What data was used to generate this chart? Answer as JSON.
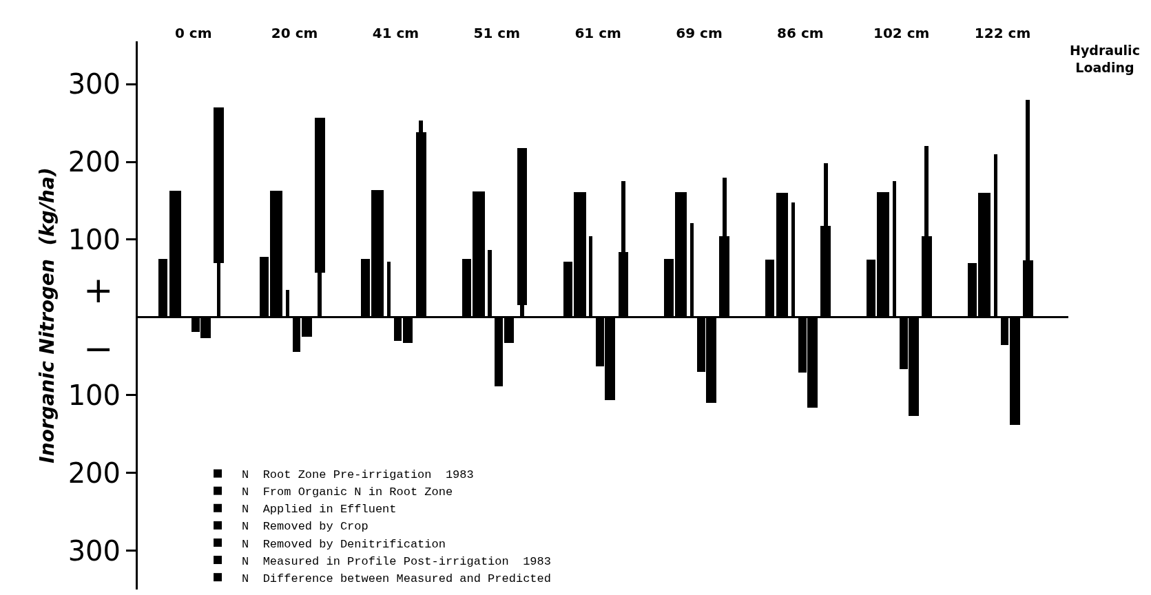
{
  "chart_data": {
    "type": "bar",
    "xlabel": "Hydraulic\nLoading",
    "ylabel": "Inorganic Nitrogen  (kg/ha)",
    "categories": [
      "0 cm",
      "20 cm",
      "41 cm",
      "51 cm",
      "61 cm",
      "69 cm",
      "86 cm",
      "102 cm",
      "122 cm"
    ],
    "series": [
      {
        "name": "N  Root Zone Pre-irrigation  1983",
        "color": "#000000",
        "values": [
          75,
          78,
          75,
          75,
          72,
          75,
          74,
          74,
          70
        ]
      },
      {
        "name": "N  From Organic N in Root Zone",
        "color": "#000000",
        "values": [
          163,
          163,
          164,
          162,
          161,
          161,
          160,
          161,
          160
        ]
      },
      {
        "name": "N  Applied in Effluent",
        "color": "#000000",
        "values": [
          0,
          35,
          72,
          87,
          104,
          121,
          148,
          175,
          210
        ]
      },
      {
        "name": "N  Removed by Crop",
        "color": "#000000",
        "values": [
          -19,
          -44,
          -30,
          -89,
          -63,
          -70,
          -71,
          -67,
          -36
        ]
      },
      {
        "name": "N  Removed by Denitrification",
        "color": "#000000",
        "values": [
          -27,
          -25,
          -33,
          -33,
          -106,
          -110,
          -116,
          -127,
          -138
        ]
      },
      {
        "name": "N  Measured in Profile Post-irrigation  1983",
        "color": "#000000",
        "base": [
          70,
          57,
          0,
          16,
          0,
          0,
          0,
          0,
          0
        ],
        "values": [
          200,
          200,
          238,
          202,
          84,
          104,
          118,
          104,
          73
        ]
      },
      {
        "name": "N  Difference between Measured and Predicted",
        "color": "#000000",
        "base": [
          0,
          0,
          238,
          0,
          84,
          104,
          118,
          104,
          73
        ],
        "values": [
          70,
          57,
          15,
          16,
          91,
          76,
          80,
          116,
          207
        ]
      }
    ],
    "ylim": [
      -350,
      355
    ],
    "yticks": [
      {
        "value": -300,
        "label": "300"
      },
      {
        "value": -200,
        "label": "200"
      },
      {
        "value": -100,
        "label": "100"
      },
      100,
      200,
      300
    ],
    "annotations": [
      "+",
      "−"
    ],
    "legend": "bottom left"
  }
}
